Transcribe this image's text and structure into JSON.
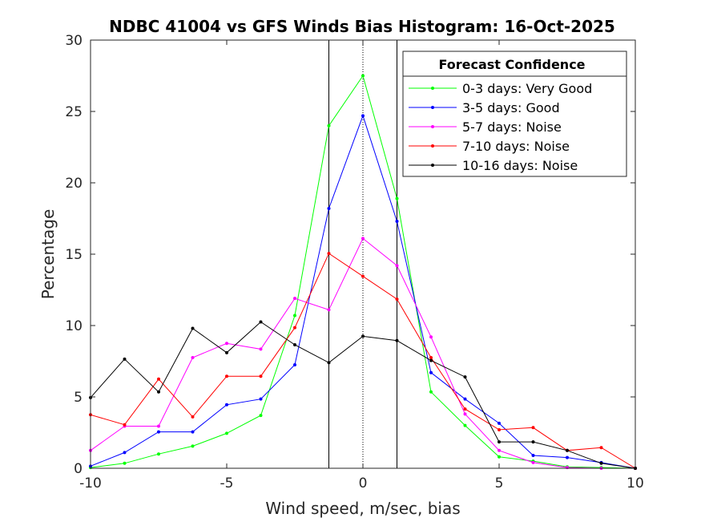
{
  "chart_data": {
    "type": "line",
    "title": "NDBC 41004 vs GFS Winds Bias Histogram: 16-Oct-2025",
    "xlabel": "Wind speed, m/sec, bias",
    "ylabel": "Percentage",
    "xlim": [
      -10,
      10
    ],
    "ylim": [
      0,
      30
    ],
    "xticks": [
      -10,
      -5,
      0,
      5,
      10
    ],
    "yticks": [
      0,
      5,
      10,
      15,
      20,
      25,
      30
    ],
    "xtick_labels": [
      "-10",
      "-5",
      "0",
      "5",
      "10"
    ],
    "ytick_labels": [
      "0",
      "5",
      "10",
      "15",
      "20",
      "25",
      "30"
    ],
    "reference_lines": {
      "solid_x": [
        -1.25,
        1.25
      ],
      "dotted_x": [
        0
      ]
    },
    "x": [
      -10,
      -8.75,
      -7.5,
      -6.25,
      -5,
      -3.75,
      -2.5,
      -1.25,
      0,
      1.25,
      2.5,
      3.75,
      5,
      6.25,
      7.5,
      8.75,
      10
    ],
    "legend": {
      "title": "Forecast Confidence",
      "position": "top-right"
    },
    "series": [
      {
        "name": "0-3 days: Very Good",
        "color": "#00ff00",
        "values": [
          0.05,
          0.35,
          1.0,
          1.55,
          2.45,
          3.7,
          10.7,
          24.0,
          27.5,
          18.9,
          5.35,
          3.0,
          0.8,
          0.5,
          0.1,
          0.05,
          0.0
        ]
      },
      {
        "name": "3-5 days: Good",
        "color": "#0000ff",
        "values": [
          0.15,
          1.1,
          2.55,
          2.55,
          4.45,
          4.85,
          7.25,
          18.2,
          24.7,
          17.3,
          6.7,
          4.85,
          3.15,
          0.9,
          0.75,
          0.4,
          0.0
        ]
      },
      {
        "name": "5-7 days: Noise",
        "color": "#ff00ff",
        "values": [
          1.25,
          2.95,
          2.95,
          7.75,
          8.75,
          8.35,
          11.9,
          11.1,
          16.1,
          14.2,
          9.2,
          3.8,
          1.25,
          0.4,
          0.05,
          0.0,
          0.0
        ]
      },
      {
        "name": "7-10 days: Noise",
        "color": "#ff0000",
        "values": [
          3.75,
          3.05,
          6.25,
          3.6,
          6.45,
          6.45,
          9.85,
          15.05,
          13.45,
          11.85,
          7.75,
          4.15,
          2.7,
          2.85,
          1.25,
          1.45,
          0.0
        ]
      },
      {
        "name": "10-16 days: Noise",
        "color": "#000000",
        "values": [
          4.95,
          7.65,
          5.35,
          9.8,
          8.1,
          10.25,
          8.65,
          7.4,
          9.25,
          8.95,
          7.55,
          6.4,
          1.85,
          1.85,
          1.25,
          0.35,
          0.0
        ]
      }
    ]
  }
}
